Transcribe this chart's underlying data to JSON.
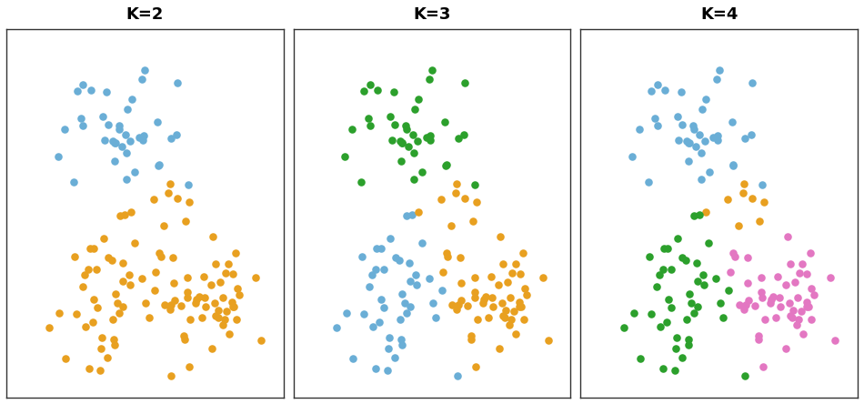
{
  "titles": [
    "K=2",
    "K=3",
    "K=4"
  ],
  "colors_k2": [
    "#6aaed6",
    "#e8a020"
  ],
  "colors_k3": [
    "#2ca02c",
    "#6aaed6",
    "#e8a020"
  ],
  "colors_k4": [
    "#6aaed6",
    "#e8a020",
    "#2ca02c",
    "#e377c2"
  ],
  "background": "#ffffff",
  "title_fontsize": 13,
  "marker_size": 38,
  "seed": 7
}
